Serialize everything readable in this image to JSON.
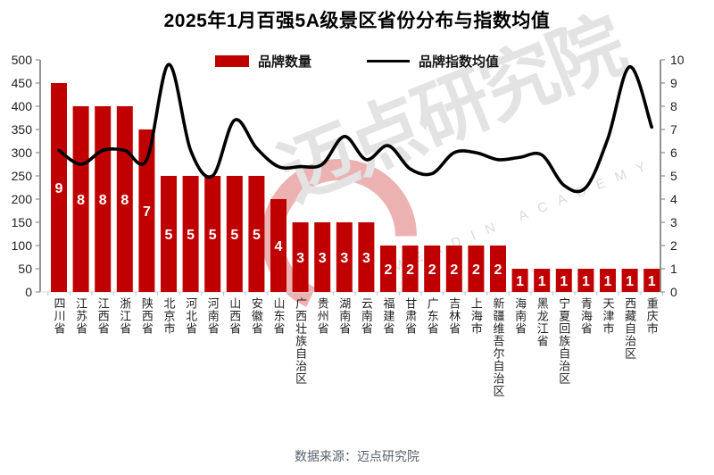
{
  "title": "2025年1月百强5A级景区省份分布与指数均值",
  "legend": {
    "bars_label": "品牌数量",
    "line_label": "品牌指数均值"
  },
  "footer": {
    "source_text": "数据来源：迈点研究院"
  },
  "watermark": {
    "text": "迈点研究院",
    "subtext": "MEADIN ACADEMY",
    "logo": "red-arc-circle"
  },
  "colors": {
    "bar": "#c00000",
    "line": "#000000",
    "bar_label": "#ffffff",
    "axis_text": "#1f1f1f",
    "axis_line": "#595959",
    "tick": "#8c8c8c",
    "baseline": "#d9d9d9",
    "boundary_tick": "#bfbfbf",
    "footer_text": "#57606e",
    "watermark_gray": "#e3e3e3",
    "watermark_red": "rgba(192,0,0,0.30)"
  },
  "chart_data": {
    "type": "bar+line combo",
    "title": "2025年1月百强5A级景区省份分布与指数均值",
    "categories": [
      "四川省",
      "江苏省",
      "江西省",
      "浙江省",
      "陕西省",
      "北京市",
      "河北省",
      "河南省",
      "山西省",
      "安徽省",
      "山东省",
      "广西壮族自治区",
      "贵州省",
      "湖南省",
      "云南省",
      "福建省",
      "甘肃省",
      "广东省",
      "吉林省",
      "上海市",
      "新疆维吾尔自治区",
      "海南省",
      "黑龙江省",
      "宁夏回族自治区",
      "青海省",
      "天津市",
      "西藏自治区",
      "重庆市"
    ],
    "series": [
      {
        "name": "品牌数量",
        "type": "bar",
        "axis": "left",
        "values": [
          9,
          8,
          8,
          8,
          7,
          5,
          5,
          5,
          5,
          5,
          4,
          3,
          3,
          3,
          3,
          2,
          2,
          2,
          2,
          2,
          2,
          1,
          1,
          1,
          1,
          1,
          1,
          1
        ],
        "bar_plotted_as_value_times_50_on_left_axis": true
      },
      {
        "name": "品牌指数均值",
        "type": "line",
        "axis": "right",
        "values": [
          6.1,
          5.5,
          6.1,
          6.1,
          5.7,
          9.8,
          6.1,
          5.0,
          7.4,
          6.2,
          5.4,
          5.4,
          5.5,
          6.7,
          5.7,
          6.3,
          5.3,
          5.1,
          6.0,
          6.0,
          5.7,
          5.8,
          5.9,
          4.6,
          4.5,
          6.6,
          9.7,
          7.1
        ]
      }
    ],
    "left_axis": {
      "range": [
        0,
        500
      ],
      "ticks": [
        0,
        50,
        100,
        150,
        200,
        250,
        300,
        350,
        400,
        450,
        500
      ]
    },
    "right_axis": {
      "range": [
        0,
        10
      ],
      "ticks": [
        0,
        1,
        2,
        3,
        4,
        5,
        6,
        7,
        8,
        9,
        10
      ]
    },
    "grid": false,
    "legend_position": "top-center"
  }
}
